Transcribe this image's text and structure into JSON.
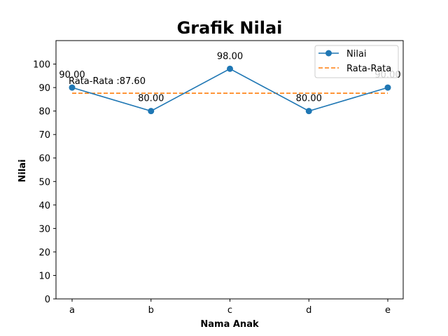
{
  "chart_data": {
    "type": "line",
    "title": "Grafik Nilai",
    "xlabel": "Nama Anak",
    "ylabel": "Nilai",
    "categories": [
      "a",
      "b",
      "c",
      "d",
      "e"
    ],
    "ylim": [
      0,
      110
    ],
    "yticks": [
      0,
      10,
      20,
      30,
      40,
      50,
      60,
      70,
      80,
      90,
      100
    ],
    "grid": false,
    "legend_position": "top-right",
    "series": [
      {
        "name": "Nilai",
        "values": [
          90,
          80,
          98,
          80,
          90
        ],
        "value_labels": [
          "90.00",
          "80.00",
          "98.00",
          "80.00",
          "90.00"
        ],
        "color": "#1f77b4",
        "style": "solid",
        "marker": "circle"
      },
      {
        "name": "Rata-Rata",
        "value": 87.6,
        "color": "#ff7f0e",
        "style": "dashed"
      }
    ],
    "annotation": "Rata-Rata :87.60"
  }
}
